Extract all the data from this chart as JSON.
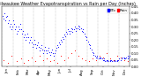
{
  "title": "Milwaukee Weather Evapotranspiration vs Rain per Day (Inches)",
  "legend_labels": [
    "ETo",
    "Rain"
  ],
  "legend_colors": [
    "#0000ff",
    "#ff0000"
  ],
  "background_color": "#ffffff",
  "plot_bg_color": "#ffffff",
  "grid_color": "#888888",
  "ylim": [
    0,
    0.45
  ],
  "xlim": [
    0,
    365
  ],
  "marker_size": 1.5,
  "title_fontsize": 3.5,
  "tick_fontsize": 2.8,
  "legend_fontsize": 3.0,
  "month_starts": [
    1,
    32,
    60,
    91,
    121,
    152,
    182,
    213,
    244,
    274,
    305,
    335
  ],
  "month_mids": [
    16,
    46,
    75,
    106,
    136,
    167,
    197,
    228,
    259,
    289,
    320,
    350
  ],
  "month_names": [
    "Jan",
    "Feb",
    "Mar",
    "Apr",
    "May",
    "Jun",
    "Jul",
    "Aug",
    "Sep",
    "Oct",
    "Nov",
    "Dec"
  ],
  "yticks": [
    0.0,
    0.05,
    0.1,
    0.15,
    0.2,
    0.25,
    0.3,
    0.35,
    0.4,
    0.45
  ],
  "eto_days": [
    3,
    5,
    8,
    10,
    12,
    15,
    18,
    20,
    22,
    25,
    28,
    30,
    33,
    35,
    38,
    40,
    42,
    45,
    48,
    50,
    52,
    55,
    58,
    60,
    63,
    65,
    68,
    70,
    72,
    75,
    78,
    80,
    82,
    85,
    88,
    90,
    92,
    95,
    98,
    100,
    102,
    105,
    108,
    110,
    112,
    115,
    118,
    120,
    122,
    125,
    128,
    130,
    132,
    135,
    138,
    140,
    142,
    145,
    148,
    150,
    152,
    155,
    158,
    160,
    162,
    165,
    168,
    170,
    172,
    175,
    178,
    180,
    182,
    185,
    188,
    190,
    192,
    195,
    198,
    200,
    202,
    205,
    208,
    210,
    212,
    215,
    218,
    220,
    222,
    225,
    228,
    230,
    232,
    235,
    238,
    240,
    242,
    245,
    248,
    250,
    252,
    255,
    258,
    260,
    262,
    265,
    268,
    270,
    272,
    275,
    278,
    280,
    282,
    285,
    288,
    290,
    292,
    295,
    298,
    300,
    302,
    305,
    308,
    310,
    312,
    315,
    318,
    320,
    322,
    325,
    328,
    330,
    332,
    335,
    338,
    340,
    342,
    345,
    348,
    350,
    352,
    355,
    358,
    360,
    362,
    365
  ],
  "eto_vals": [
    0.38,
    0.36,
    0.4,
    0.35,
    0.37,
    0.38,
    0.33,
    0.35,
    0.3,
    0.32,
    0.28,
    0.3,
    0.35,
    0.32,
    0.28,
    0.3,
    0.25,
    0.27,
    0.3,
    0.28,
    0.32,
    0.28,
    0.25,
    0.27,
    0.22,
    0.24,
    0.2,
    0.22,
    0.25,
    0.22,
    0.18,
    0.2,
    0.22,
    0.18,
    0.15,
    0.17,
    0.2,
    0.17,
    0.14,
    0.16,
    0.18,
    0.15,
    0.12,
    0.14,
    0.16,
    0.13,
    0.1,
    0.12,
    0.15,
    0.12,
    0.1,
    0.12,
    0.14,
    0.11,
    0.09,
    0.11,
    0.13,
    0.1,
    0.08,
    0.1,
    0.12,
    0.14,
    0.16,
    0.15,
    0.18,
    0.17,
    0.2,
    0.19,
    0.22,
    0.21,
    0.24,
    0.23,
    0.26,
    0.25,
    0.28,
    0.27,
    0.25,
    0.27,
    0.29,
    0.28,
    0.26,
    0.28,
    0.3,
    0.29,
    0.27,
    0.29,
    0.31,
    0.3,
    0.28,
    0.29,
    0.27,
    0.28,
    0.26,
    0.25,
    0.23,
    0.22,
    0.2,
    0.19,
    0.17,
    0.16,
    0.14,
    0.13,
    0.11,
    0.1,
    0.09,
    0.08,
    0.07,
    0.08,
    0.07,
    0.06,
    0.07,
    0.06,
    0.07,
    0.06,
    0.05,
    0.06,
    0.05,
    0.04,
    0.05,
    0.04,
    0.05,
    0.04,
    0.05,
    0.04,
    0.05,
    0.04,
    0.05,
    0.04,
    0.05,
    0.04,
    0.05,
    0.04,
    0.05,
    0.06,
    0.05,
    0.07,
    0.06,
    0.07,
    0.06,
    0.07,
    0.06,
    0.07,
    0.06,
    0.08,
    0.07,
    0.08
  ],
  "rain_days": [
    5,
    18,
    28,
    42,
    55,
    62,
    75,
    85,
    95,
    108,
    118,
    128,
    138,
    148,
    158,
    168,
    178,
    188,
    198,
    208,
    218,
    228,
    238,
    248,
    258,
    268,
    278,
    288,
    298,
    308,
    318,
    328,
    338,
    348,
    358
  ],
  "rain_vals": [
    0.05,
    0.03,
    0.08,
    0.04,
    0.06,
    0.03,
    0.05,
    0.07,
    0.04,
    0.08,
    0.05,
    0.06,
    0.04,
    0.05,
    0.03,
    0.08,
    0.05,
    0.07,
    0.1,
    0.12,
    0.08,
    0.06,
    0.05,
    0.04,
    0.06,
    0.05,
    0.08,
    0.07,
    0.1,
    0.06,
    0.05,
    0.08,
    0.07,
    0.05,
    0.04
  ]
}
